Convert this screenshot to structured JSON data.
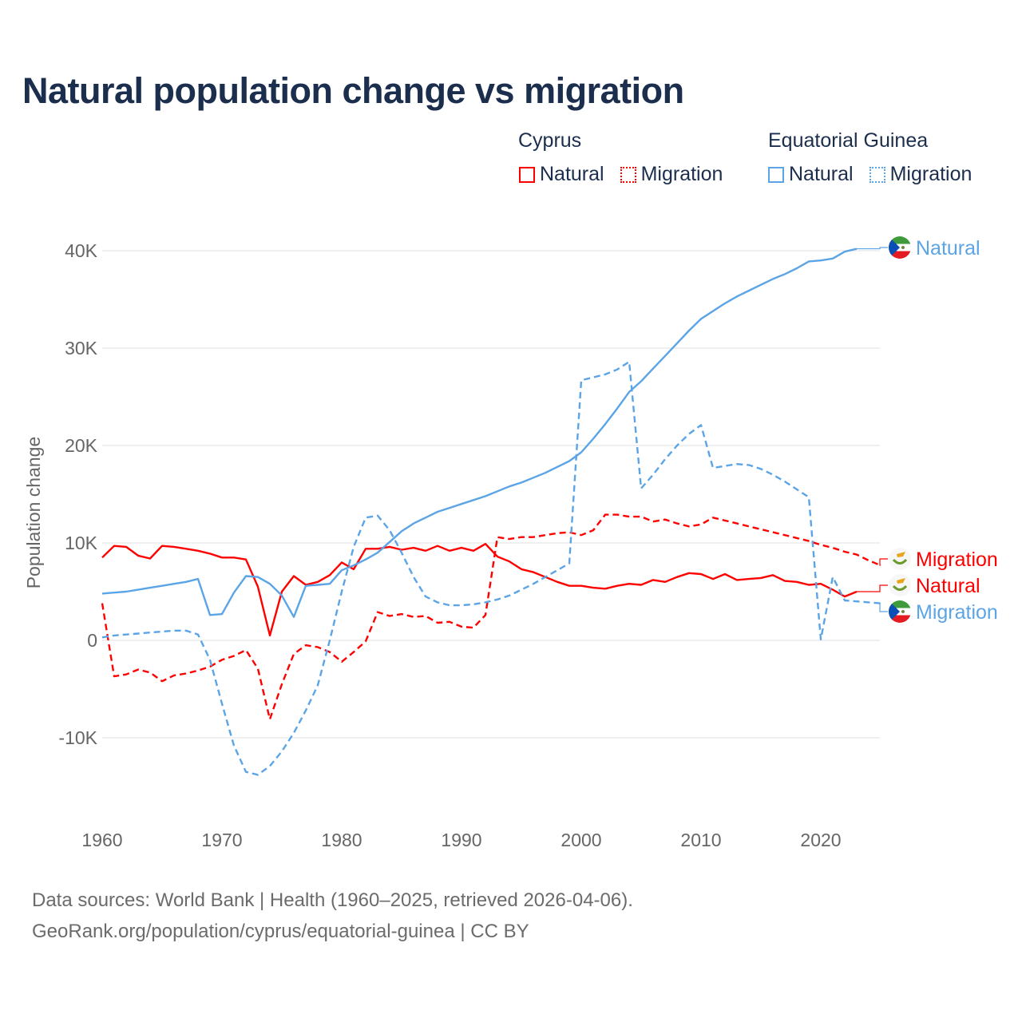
{
  "title": "Natural population change vs migration",
  "legend": {
    "groups": [
      {
        "name": "Cyprus",
        "items": [
          {
            "label": "Natural",
            "color": "#ff0000",
            "style": "solid"
          },
          {
            "label": "Migration",
            "color": "#ff0000",
            "style": "dotted"
          }
        ]
      },
      {
        "name": "Equatorial Guinea",
        "items": [
          {
            "label": "Natural",
            "color": "#5ba4e6",
            "style": "solid"
          },
          {
            "label": "Migration",
            "color": "#5ba4e6",
            "style": "dotted"
          }
        ]
      }
    ]
  },
  "footer": {
    "line1": "Data sources: World Bank | Health (1960–2025, retrieved 2026-04-06).",
    "line2": "GeoRank.org/population/cyprus/equatorial-guinea | CC BY"
  },
  "chart_data": {
    "type": "line",
    "title": "Natural population change vs migration",
    "xlabel": "",
    "ylabel": "Population change",
    "unit": "thousands",
    "xlim": [
      1960,
      2025
    ],
    "ylim": [
      -15,
      42
    ],
    "xticks": [
      1960,
      1970,
      1980,
      1990,
      2000,
      2010,
      2020
    ],
    "xtick_labels": [
      "1960",
      "1970",
      "1980",
      "1990",
      "2000",
      "2010",
      "2020"
    ],
    "yticks": [
      -10,
      0,
      10,
      20,
      30,
      40
    ],
    "ytick_labels": [
      "-10K",
      "0",
      "10K",
      "20K",
      "30K",
      "40K"
    ],
    "grid": true,
    "legend_position": "top-right",
    "x_start": 1960,
    "series": [
      {
        "name": "Cyprus Natural",
        "end_label": "Natural",
        "color": "#ff0000",
        "dash": false,
        "flag": "cyprus",
        "values": [
          8.5,
          9.7,
          9.6,
          8.7,
          8.4,
          9.7,
          9.6,
          9.4,
          9.2,
          8.9,
          8.5,
          8.5,
          8.3,
          5.5,
          0.5,
          5.0,
          6.6,
          5.7,
          6.0,
          6.7,
          8.0,
          7.3,
          9.4,
          9.4,
          9.6,
          9.3,
          9.5,
          9.2,
          9.7,
          9.2,
          9.5,
          9.2,
          9.9,
          8.6,
          8.1,
          7.3,
          7.0,
          6.5,
          6.0,
          5.6,
          5.6,
          5.4,
          5.3,
          5.6,
          5.8,
          5.7,
          6.2,
          6.0,
          6.5,
          6.9,
          6.8,
          6.3,
          6.8,
          6.2,
          6.3,
          6.4,
          6.7,
          6.1,
          6.0,
          5.7,
          5.8,
          5.2,
          4.5,
          5.0
        ]
      },
      {
        "name": "Cyprus Migration",
        "end_label": "Migration",
        "color": "#ff0000",
        "dash": true,
        "flag": "cyprus",
        "values": [
          3.8,
          -3.7,
          -3.5,
          -3.0,
          -3.3,
          -4.2,
          -3.6,
          -3.4,
          -3.1,
          -2.7,
          -2.0,
          -1.6,
          -1.0,
          -2.9,
          -8.1,
          -4.5,
          -1.4,
          -0.5,
          -0.7,
          -1.2,
          -2.2,
          -1.2,
          -0.1,
          2.9,
          2.5,
          2.7,
          2.4,
          2.5,
          1.8,
          1.9,
          1.4,
          1.3,
          2.6,
          10.6,
          10.4,
          10.6,
          10.6,
          10.8,
          11.0,
          11.1,
          10.8,
          11.3,
          12.9,
          12.9,
          12.7,
          12.7,
          12.2,
          12.4,
          12.0,
          11.7,
          11.9,
          12.6,
          12.3,
          12.0,
          11.7,
          11.4,
          11.1,
          10.8,
          10.5,
          10.2,
          9.8,
          9.5,
          9.1,
          8.8,
          8.2,
          7.7
        ]
      },
      {
        "name": "Equatorial Guinea Natural",
        "end_label": "Natural",
        "color": "#5ba4e6",
        "dash": false,
        "flag": "equatorial-guinea",
        "values": [
          4.8,
          4.9,
          5.0,
          5.2,
          5.4,
          5.6,
          5.8,
          6.0,
          6.3,
          2.6,
          2.7,
          4.9,
          6.6,
          6.5,
          5.8,
          4.6,
          2.4,
          5.6,
          5.7,
          5.8,
          7.2,
          7.7,
          8.3,
          9.0,
          10.1,
          11.2,
          12.0,
          12.6,
          13.2,
          13.6,
          14.0,
          14.4,
          14.8,
          15.3,
          15.8,
          16.2,
          16.7,
          17.2,
          17.8,
          18.4,
          19.3,
          20.7,
          22.2,
          23.8,
          25.5,
          26.6,
          27.9,
          29.2,
          30.5,
          31.8,
          33.0,
          33.8,
          34.6,
          35.3,
          35.9,
          36.5,
          37.1,
          37.6,
          38.2,
          38.9,
          39.0,
          39.2,
          39.9,
          40.2
        ]
      },
      {
        "name": "Equatorial Guinea Migration",
        "end_label": "Migration",
        "color": "#5ba4e6",
        "dash": true,
        "flag": "equatorial-guinea",
        "values": [
          0.3,
          0.5,
          0.6,
          0.7,
          0.8,
          0.9,
          1.0,
          1.0,
          0.6,
          -2.0,
          -6.5,
          -10.8,
          -13.5,
          -13.8,
          -12.9,
          -11.4,
          -9.5,
          -7.2,
          -4.6,
          0.0,
          5.0,
          9.6,
          12.6,
          12.8,
          11.3,
          9.0,
          6.5,
          4.5,
          3.9,
          3.6,
          3.6,
          3.7,
          3.9,
          4.2,
          4.6,
          5.2,
          5.8,
          6.5,
          7.2,
          7.9,
          26.7,
          27.0,
          27.3,
          27.8,
          28.6,
          15.6,
          17.0,
          18.6,
          20.0,
          21.2,
          22.1,
          17.7,
          17.9,
          18.1,
          18.0,
          17.6,
          17.0,
          16.3,
          15.5,
          14.7,
          0.1,
          6.5,
          4.1,
          4.0,
          3.9,
          3.8
        ]
      }
    ]
  }
}
